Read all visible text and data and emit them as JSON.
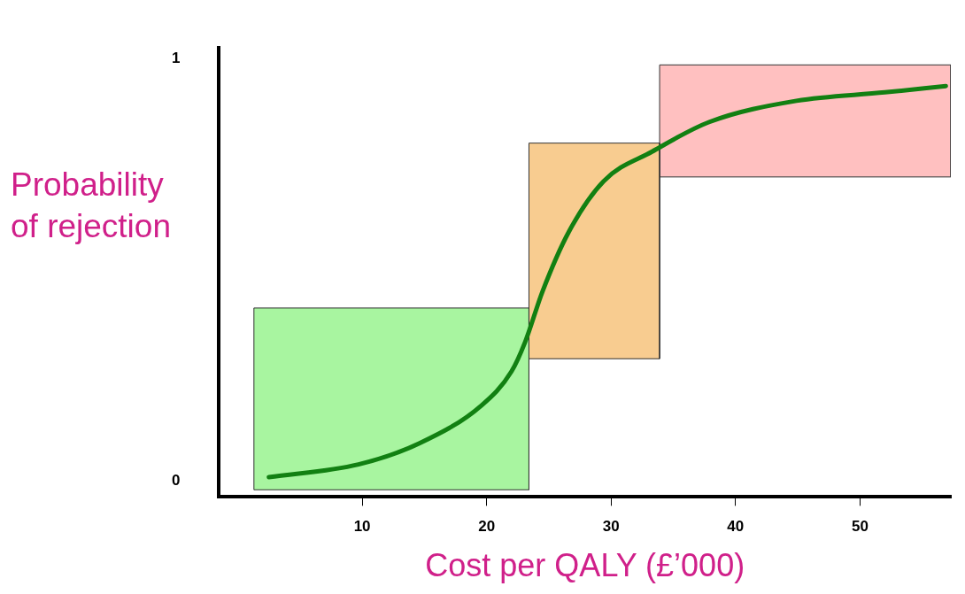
{
  "chart_data": {
    "type": "line",
    "xlabel": "Cost per QALY (£’000)",
    "ylabel": "Probability of rejection",
    "xlim": [
      -1.5,
      57.3
    ],
    "ylim": [
      -0.037,
      1.025
    ],
    "xticks": [
      10,
      20,
      30,
      40,
      50
    ],
    "yticks": [
      0,
      1
    ],
    "grid": false,
    "legend": false,
    "series": [
      {
        "type": "area",
        "color": "#a8f5a0",
        "x": [
          1.3,
          1.3,
          23.4,
          23.4,
          1.3
        ],
        "values": [
          -0.02,
          0.41,
          0.41,
          -0.02,
          -0.02
        ]
      },
      {
        "type": "area",
        "color": "#f8cc90",
        "x": [
          23.4,
          23.4,
          33.9,
          33.9,
          23.4
        ],
        "values": [
          0.29,
          0.8,
          0.8,
          0.29,
          0.29
        ]
      },
      {
        "type": "area",
        "color": "#ffc0c0",
        "x": [
          33.9,
          33.9,
          57.3,
          57.3,
          33.9
        ],
        "values": [
          0.72,
          0.985,
          0.985,
          0.72,
          0.72
        ]
      },
      {
        "color": "#128012",
        "x": [
          2.5,
          9.7,
          14.6,
          19.6,
          22,
          23.1,
          24.5,
          26.6,
          29.4,
          33.3,
          37.9,
          44.9,
          52,
          56.9
        ],
        "values": [
          0.01,
          0.04,
          0.09,
          0.18,
          0.26,
          0.33,
          0.45,
          0.59,
          0.71,
          0.78,
          0.85,
          0.9,
          0.92,
          0.935
        ]
      }
    ]
  }
}
